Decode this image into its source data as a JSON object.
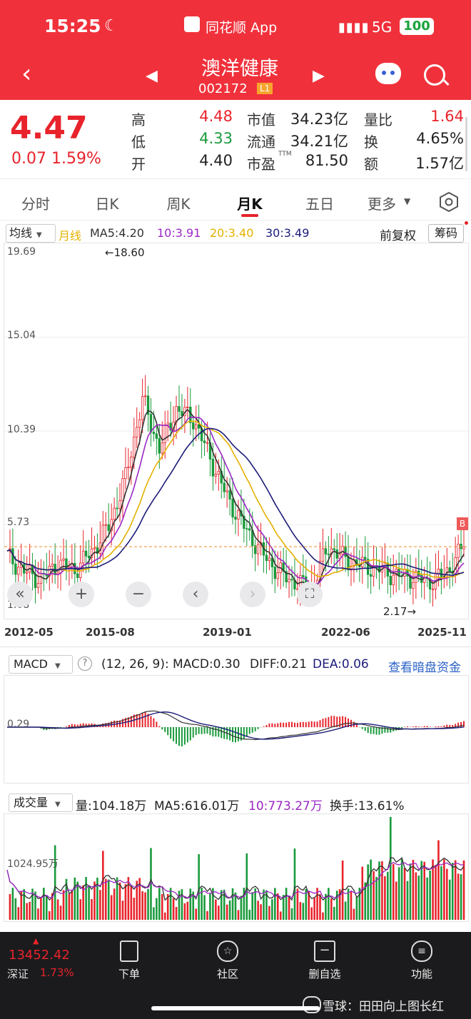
{
  "status_bar": {
    "time": "15:25",
    "app": "同花顺 App",
    "network": "5G",
    "battery": "100"
  },
  "header": {
    "stock_name": "澳洋健康",
    "stock_code": "002172",
    "level": "L1"
  },
  "quote": {
    "price": "4.47",
    "change": "0.07",
    "change_pct": "1.59%",
    "high_label": "高",
    "high": "4.48",
    "low_label": "低",
    "low": "4.33",
    "open_label": "开",
    "open": "4.40",
    "mcap_label": "市值",
    "mcap": "34.23亿",
    "float_label": "流通",
    "float": "34.21亿",
    "pe_label": "市盈",
    "pe_sup": "TTM",
    "pe": "81.50",
    "vr_label": "量比",
    "vr": "1.64",
    "turnover_label": "换",
    "turnover": "4.65%",
    "amount_label": "额",
    "amount": "1.57亿"
  },
  "tabs": [
    "分时",
    "日K",
    "周K",
    "月K",
    "五日",
    "更多"
  ],
  "active_tab": "月K",
  "ma_bar": {
    "indicator": "均线",
    "period": "月线",
    "ma5": "MA5:4.20",
    "ma10": "10:3.91",
    "ma20": "20:3.40",
    "ma30": "30:3.49",
    "adjust": "前复权",
    "chips": "筹码"
  },
  "main_chart": {
    "y_ticks": [
      "19.69",
      "15.04",
      "10.39",
      "5.73",
      "1.08"
    ],
    "x_ticks": [
      "2012-05",
      "2015-08",
      "2019-01",
      "2022-06",
      "2025-11"
    ],
    "max_note": "←18.60",
    "min_note": "2.17→",
    "marker": "B"
  },
  "macd": {
    "label": "MACD",
    "params": "(12, 26, 9):",
    "macd": "MACD:0.30",
    "diff": "DIFF:0.21",
    "dea": "DEA:0.06",
    "link": "查看暗盘资金",
    "axis": "0.29"
  },
  "volume": {
    "label": "成交量",
    "vol": "量:104.18万",
    "ma5": "MA5:616.01万",
    "ma10": "10:773.27万",
    "turnover": "换手:13.61%",
    "axis": "1024.95万"
  },
  "bottom_bar": {
    "index_value": "13452.42",
    "index_name": "深证",
    "index_pct": "1.73%",
    "items": [
      "下单",
      "社区",
      "删自选",
      "功能"
    ]
  },
  "watermark": "雪球：田田向上图长红",
  "colors": {
    "header": "#f0313b",
    "up": "#e8232b",
    "down": "#1a9a3c",
    "ma5": "#333333",
    "ma10": "#9b27c4",
    "ma20": "#e3b100",
    "ma30": "#1c1c7a"
  },
  "chart_data": {
    "type": "candlestick",
    "period": "monthly",
    "x_range": [
      "2012-05",
      "2025-11"
    ],
    "ylim": [
      1.08,
      19.69
    ],
    "highest": 18.6,
    "lowest": 2.17,
    "approx_close_path": [
      4.0,
      3.2,
      2.8,
      3.6,
      3.3,
      4.2,
      5.5,
      8.0,
      12.0,
      9.5,
      11.5,
      11.0,
      9.0,
      7.0,
      5.5,
      4.2,
      3.2,
      2.6,
      2.4,
      4.5,
      3.8,
      3.5,
      3.3,
      3.0,
      2.9,
      2.6,
      3.2,
      4.47
    ]
  }
}
